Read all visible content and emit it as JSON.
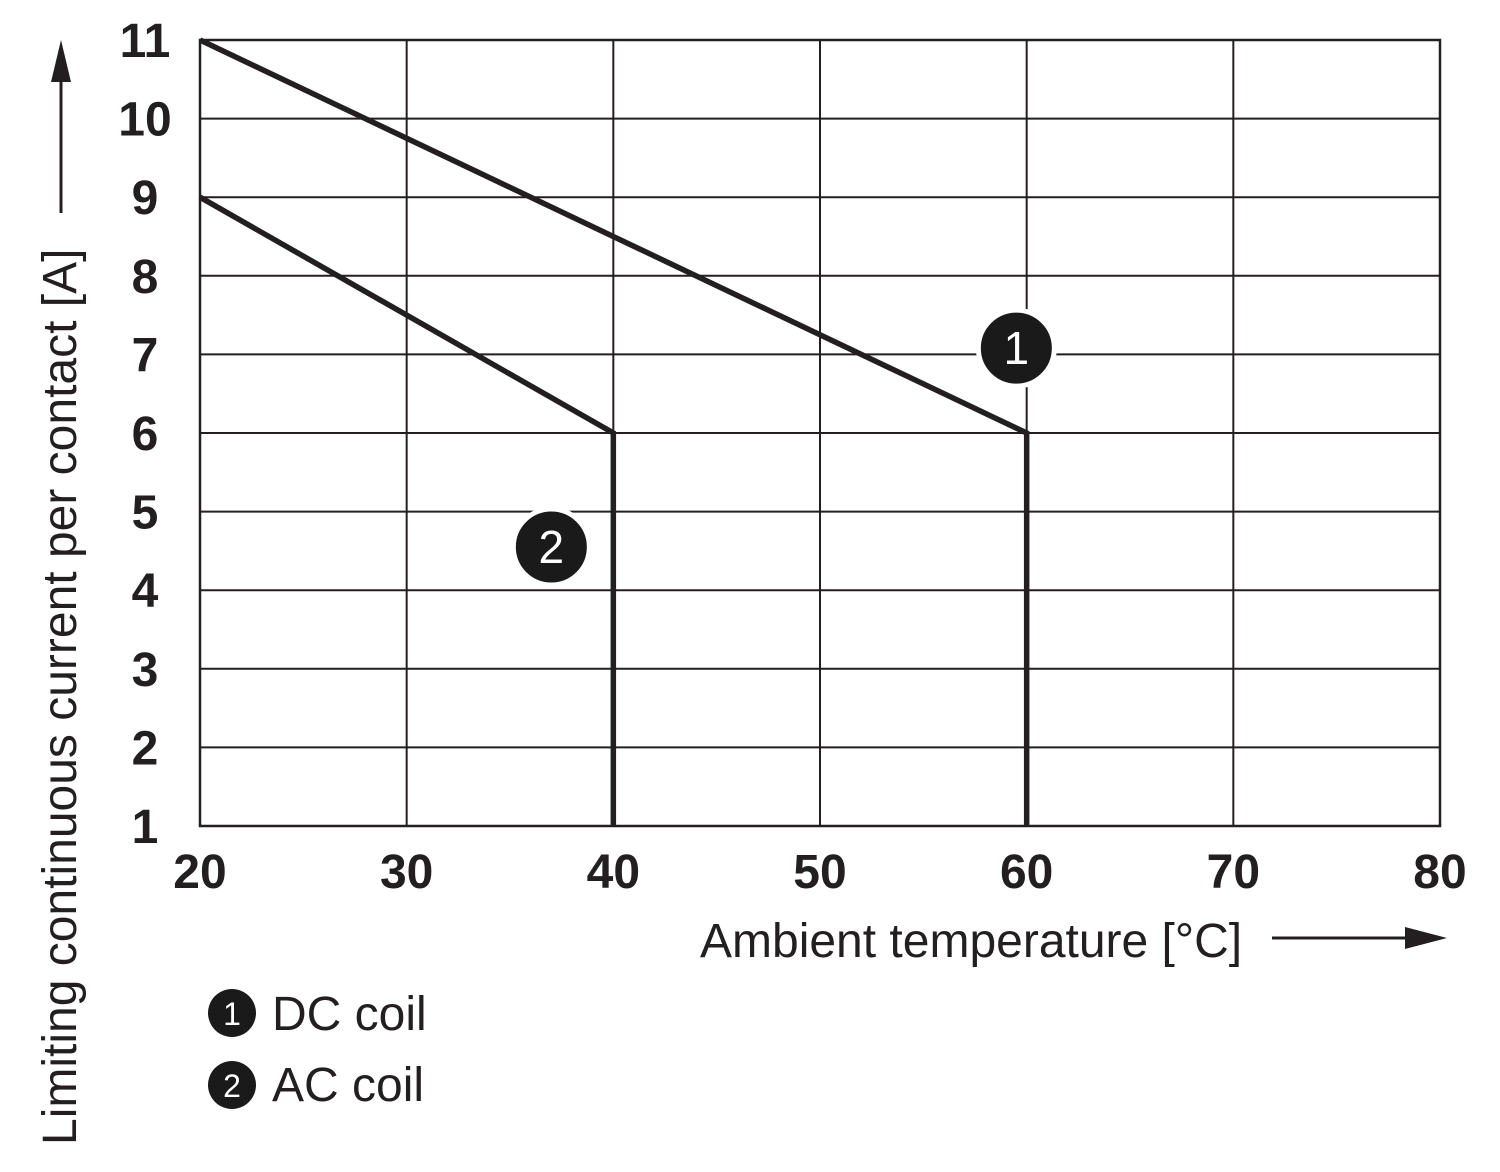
{
  "colors": {
    "ink": "#231f20",
    "marker_fill": "#1a1a1a",
    "marker_text": "#ffffff",
    "background": "#ffffff"
  },
  "chart_data": {
    "type": "line",
    "xlabel": "Ambient temperature [°C]",
    "ylabel": "Limiting continuous current per contact [A]",
    "xlim": [
      20,
      80
    ],
    "ylim": [
      1,
      11
    ],
    "xticks": [
      20,
      30,
      40,
      50,
      60,
      70,
      80
    ],
    "yticks": [
      1,
      2,
      3,
      4,
      5,
      6,
      7,
      8,
      9,
      10,
      11
    ],
    "grid": true,
    "legend": "bottom-left",
    "series": [
      {
        "name": "DC coil",
        "marker_label": "1",
        "x": [
          20,
          60,
          60
        ],
        "y": [
          11,
          6,
          1
        ]
      },
      {
        "name": "AC coil",
        "marker_label": "2",
        "x": [
          20,
          40,
          40
        ],
        "y": [
          9,
          6,
          1
        ]
      }
    ]
  }
}
